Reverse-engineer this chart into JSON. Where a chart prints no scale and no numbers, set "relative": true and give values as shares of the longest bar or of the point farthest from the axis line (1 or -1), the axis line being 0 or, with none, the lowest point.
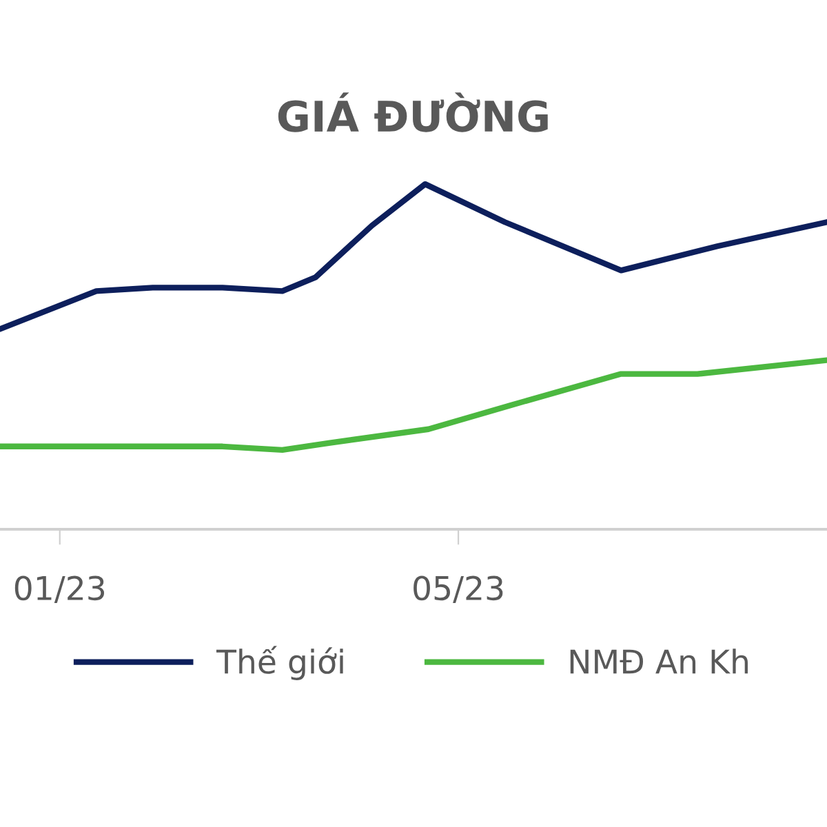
{
  "chart_data": {
    "type": "line",
    "title": "GIÁ ĐƯỜNG",
    "relative": true,
    "xlim": [
      "2022-12-14",
      "2023-08-20"
    ],
    "xticks": [
      {
        "value": "2023-01-01",
        "label": "01/23"
      },
      {
        "value": "2023-05-01",
        "label": "05/23"
      }
    ],
    "series": [
      {
        "name": "Thế giới",
        "color": "#0d1f5c",
        "x": [
          "2022-12-14",
          "2023-01-12",
          "2023-01-29",
          "2023-02-19",
          "2023-03-09",
          "2023-03-19",
          "2023-04-05",
          "2023-04-21",
          "2023-05-15",
          "2023-06-19",
          "2023-07-18",
          "2023-08-20"
        ],
        "values": [
          0.58,
          0.69,
          0.7,
          0.7,
          0.69,
          0.73,
          0.88,
          1.0,
          0.89,
          0.75,
          0.82,
          0.89
        ]
      },
      {
        "name": "NMĐ An Kh",
        "color": "#4cb840",
        "x": [
          "2022-12-14",
          "2023-02-19",
          "2023-03-09",
          "2023-03-23",
          "2023-04-22",
          "2023-05-17",
          "2023-06-19",
          "2023-07-12",
          "2023-08-20"
        ],
        "values": [
          0.24,
          0.24,
          0.23,
          0.25,
          0.29,
          0.36,
          0.45,
          0.45,
          0.49
        ]
      }
    ],
    "legend": "bottom",
    "grid": false,
    "marker": "none",
    "line_style": "solid"
  }
}
